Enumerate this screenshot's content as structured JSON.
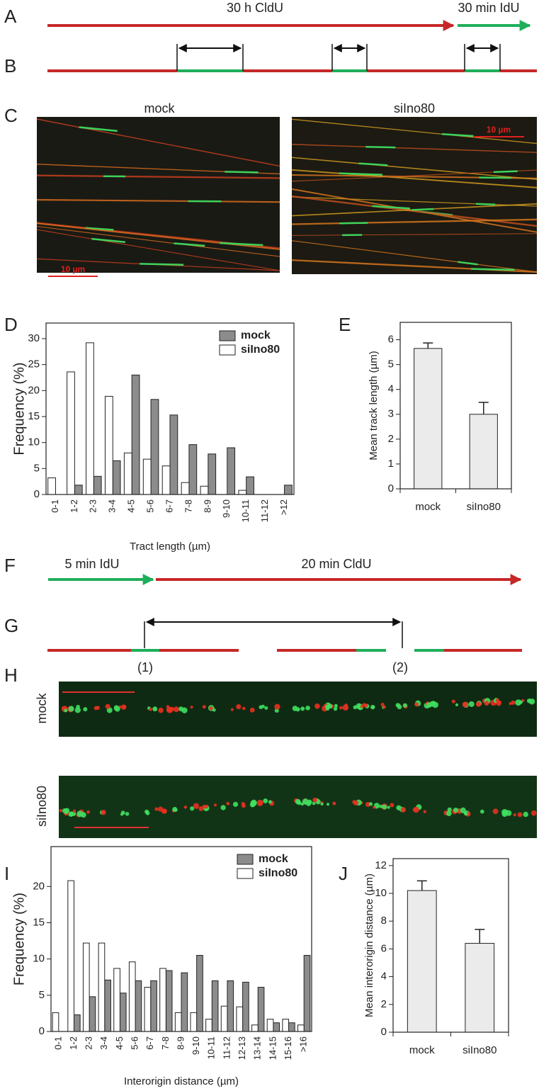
{
  "panels": {
    "labels": [
      "A",
      "B",
      "C",
      "D",
      "E",
      "F",
      "G",
      "H",
      "I",
      "J"
    ],
    "a": {
      "cldu": "30 h CldU",
      "idu": "30 min IdU"
    },
    "c": {
      "mock": "mock",
      "siino80": "siIno80",
      "scale_left": "10 µm",
      "scale_right": "10 µm"
    },
    "f": {
      "idu": "5 min IdU",
      "cldu": "20 min CldU"
    },
    "g": {
      "origin1": "(1)",
      "origin2": "(2)"
    },
    "h": {
      "mock": "mock",
      "siino80": "siIno80"
    }
  },
  "chart_data": [
    {
      "type": "bar",
      "ylabel": "Frequency (%)",
      "xlabel": "Tract length (µm)",
      "categories": [
        "0-1",
        "1-2",
        "2-3",
        "3-4",
        "4-5",
        "5-6",
        "6-7",
        "7-8",
        "8-9",
        "9-10",
        "10-11",
        "11-12",
        ">12"
      ],
      "series": [
        {
          "name": "mock",
          "color": "#8c8c8c",
          "values": [
            0,
            1.8,
            3.5,
            6.5,
            23,
            18.3,
            15.3,
            9.6,
            7.8,
            9,
            3.4,
            0,
            1.8
          ]
        },
        {
          "name": "siIno80",
          "color": "#ffffff",
          "values": [
            3.2,
            23.6,
            29.2,
            18.9,
            8,
            6.8,
            5.5,
            2.3,
            1.6,
            0,
            0.8,
            0,
            0
          ]
        }
      ],
      "ylim": [
        0,
        33
      ],
      "yticks": [
        0,
        5,
        10,
        15,
        20,
        25,
        30
      ],
      "legend": "upper right"
    },
    {
      "type": "bar",
      "ylabel": "Mean track length (µm)",
      "categories": [
        "mock",
        "siIno80"
      ],
      "values": [
        5.65,
        3.0
      ],
      "errors": [
        0.22,
        0.48
      ],
      "color": "#ebebeb",
      "ylim": [
        0,
        6.7
      ],
      "yticks": [
        0,
        1,
        2,
        3,
        4,
        5,
        6
      ]
    },
    {
      "type": "bar",
      "ylabel": "Frequency (%)",
      "xlabel": "Interorigin distance (µm)",
      "categories": [
        "0-1",
        "1-2",
        "2-3",
        "3-4",
        "4-5",
        "5-6",
        "6-7",
        "7-8",
        "8-9",
        "9-10",
        "10-11",
        "11-12",
        "12-13",
        "13-14",
        "14-15",
        "15-16",
        ">16"
      ],
      "series": [
        {
          "name": "mock",
          "color": "#8c8c8c",
          "values": [
            0,
            2.3,
            4.8,
            7.1,
            5.3,
            7.0,
            7.0,
            8.4,
            8.1,
            10.5,
            7.0,
            7.0,
            6.8,
            6.1,
            1.2,
            1.2,
            10.5
          ]
        },
        {
          "name": "siIno80",
          "color": "#ffffff",
          "values": [
            2.6,
            20.8,
            12.2,
            12.2,
            8.7,
            9.6,
            6.1,
            8.7,
            2.6,
            2.6,
            1.7,
            3.5,
            3.4,
            0.9,
            1.7,
            1.7,
            0.9
          ]
        }
      ],
      "ylim": [
        0,
        25.5
      ],
      "yticks": [
        0,
        5,
        10,
        15,
        20
      ],
      "legend": "upper right"
    },
    {
      "type": "bar",
      "ylabel": "Mean interorigin distance (µm)",
      "categories": [
        "mock",
        "siIno80"
      ],
      "values": [
        10.2,
        6.4
      ],
      "errors": [
        0.7,
        1.0
      ],
      "color": "#ebebeb",
      "ylim": [
        0,
        12.5
      ],
      "yticks": [
        0,
        2,
        4,
        6,
        8,
        10,
        12
      ]
    }
  ]
}
